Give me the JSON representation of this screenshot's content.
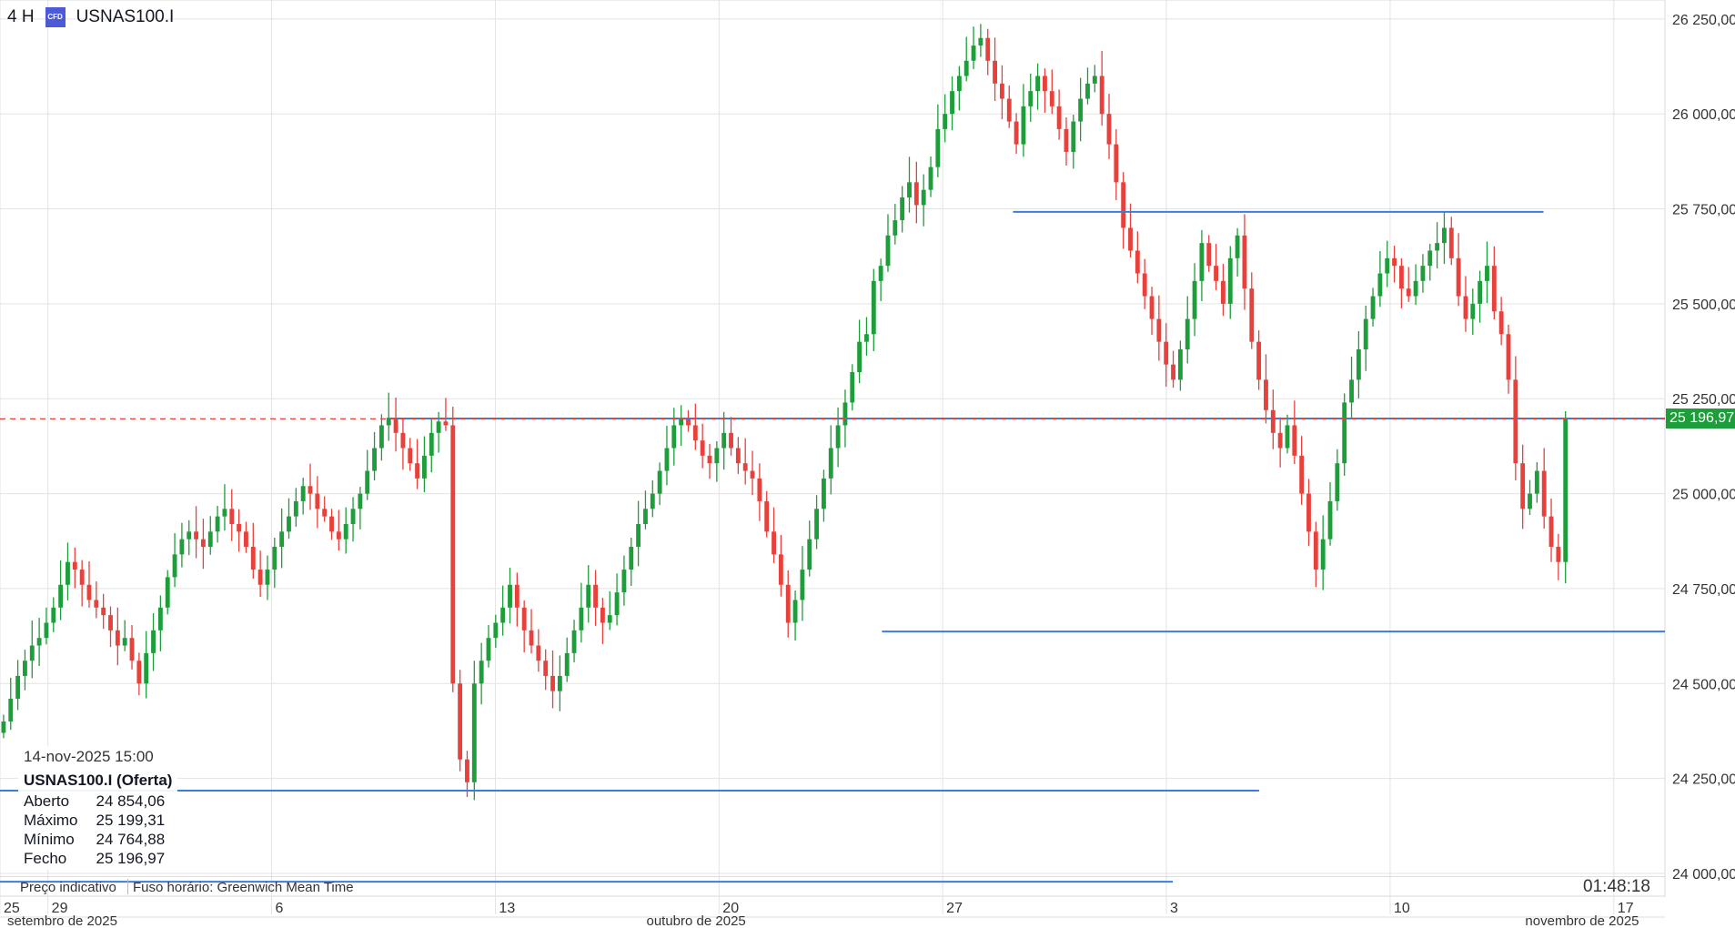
{
  "header": {
    "timeframe": "4 H",
    "badge": "CFD",
    "symbol": "USNAS100.I"
  },
  "info_panel": {
    "timestamp": "14-nov-2025 15:00",
    "title": "USNAS100.I (Oferta)",
    "rows": [
      {
        "label": "Aberto",
        "value": "24 854,06"
      },
      {
        "label": "Máximo",
        "value": "25 199,31"
      },
      {
        "label": "Mínimo",
        "value": "24 764,88"
      },
      {
        "label": "Fecho",
        "value": "25 196,97"
      }
    ]
  },
  "footer": {
    "price_type": "Preço indicativo",
    "timezone": "Fuso horário: Greenwich Mean Time",
    "countdown": "01:48:18"
  },
  "current_price_label": "25 196,97",
  "colors": {
    "up": "#1e9e3a",
    "down": "#e8413c",
    "line": "#3b7ddd",
    "grid": "#e3e3e3",
    "current": "#e8413c"
  },
  "chart_data": {
    "type": "candlestick",
    "symbol": "USNAS100.I",
    "timeframe": "4 H",
    "ylim": [
      23940,
      26300
    ],
    "y_ticks": [
      24000,
      24250,
      24500,
      24750,
      25000,
      25250,
      25500,
      25750,
      26000,
      26250
    ],
    "y_tick_labels": [
      "24 000,00",
      "24 250,00",
      "24 500,00",
      "24 750,00",
      "25 000,00",
      "25 250,00",
      "25 500,00",
      "25 750,00",
      "26 000,00",
      "26 250,00"
    ],
    "x_range_days": [
      -1.5,
      50.6
    ],
    "x_ticks": [
      {
        "label": "25",
        "day": -1.5
      },
      {
        "label": "29",
        "day": 0
      },
      {
        "label": "6",
        "day": 7
      },
      {
        "label": "13",
        "day": 14
      },
      {
        "label": "20",
        "day": 21
      },
      {
        "label": "27",
        "day": 28
      },
      {
        "label": "3",
        "day": 35
      },
      {
        "label": "10",
        "day": 42
      },
      {
        "label": "17",
        "day": 49
      }
    ],
    "month_labels": [
      {
        "label": "setembro de 2025",
        "day": -1.5
      },
      {
        "label": "outubro de 2025",
        "day": 18.5
      },
      {
        "label": "novembro de 2025",
        "day": 46
      }
    ],
    "current_price": 25196.97,
    "horizontal_lines": [
      {
        "from_day": 30.2,
        "to_day": 46.8,
        "value": 25742
      },
      {
        "from_day": 10.7,
        "to_day": 50.6,
        "value": 25198
      },
      {
        "from_day": 26.1,
        "to_day": 50.6,
        "value": 24637
      },
      {
        "from_day": -1.5,
        "to_day": 37.9,
        "value": 24218
      },
      {
        "from_day": -1.5,
        "to_day": 35.2,
        "value": 23978
      }
    ],
    "candles_close": [
      24400,
      24460,
      24520,
      24560,
      24600,
      24620,
      24660,
      24700,
      24760,
      24820,
      24800,
      24760,
      24720,
      24700,
      24680,
      24640,
      24600,
      24620,
      24560,
      24500,
      24580,
      24640,
      24700,
      24780,
      24840,
      24880,
      24900,
      24880,
      24860,
      24900,
      24940,
      24960,
      24920,
      24900,
      24860,
      24800,
      24760,
      24800,
      24860,
      24900,
      24940,
      24980,
      25020,
      25000,
      24960,
      24940,
      24900,
      24880,
      24920,
      24960,
      25000,
      25060,
      25120,
      25180,
      25200,
      25160,
      25120,
      25080,
      25040,
      25100,
      25160,
      25190,
      25180,
      24500,
      24300,
      24240,
      24500,
      24560,
      24620,
      24660,
      24700,
      24760,
      24700,
      24640,
      24600,
      24560,
      24520,
      24480,
      24520,
      24580,
      24640,
      24700,
      24760,
      24700,
      24660,
      24680,
      24740,
      24800,
      24860,
      24920,
      24960,
      25000,
      25060,
      25120,
      25180,
      25200,
      25180,
      25140,
      25100,
      25080,
      25120,
      25160,
      25120,
      25080,
      25060,
      25040,
      24980,
      24900,
      24840,
      24760,
      24660,
      24720,
      24800,
      24880,
      24960,
      25040,
      25120,
      25180,
      25240,
      25320,
      25400,
      25420,
      25560,
      25600,
      25680,
      25720,
      25780,
      25820,
      25760,
      25800,
      25860,
      25960,
      26000,
      26060,
      26100,
      26140,
      26180,
      26200,
      26140,
      26080,
      26040,
      25980,
      25920,
      26020,
      26060,
      26100,
      26060,
      26020,
      25960,
      25900,
      25980,
      26040,
      26080,
      26100,
      26000,
      25920,
      25820,
      25700,
      25640,
      25580,
      25520,
      25460,
      25400,
      25340,
      25300,
      25380,
      25460,
      25560,
      25660,
      25600,
      25560,
      25500,
      25620,
      25680,
      25540,
      25400,
      25300,
      25220,
      25160,
      25120,
      25180,
      25100,
      25000,
      24900,
      24800,
      24880,
      24980,
      25080,
      25240,
      25300,
      25380,
      25460,
      25520,
      25580,
      25620,
      25600,
      25540,
      25520,
      25560,
      25600,
      25640,
      25660,
      25700,
      25620,
      25520,
      25460,
      25500,
      25560,
      25600,
      25480,
      25420,
      25300,
      25080,
      24960,
      25000,
      25060,
      24940,
      24860,
      24820,
      25196
    ]
  }
}
